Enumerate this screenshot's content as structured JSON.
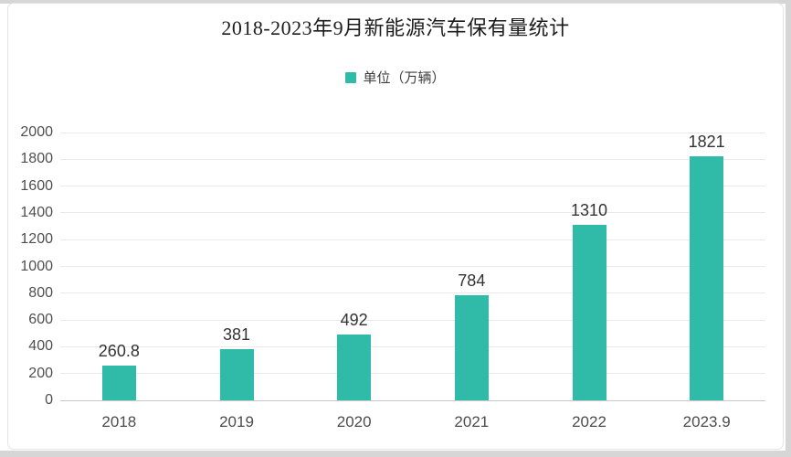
{
  "chart_data": {
    "type": "bar",
    "title": "2018-2023年9月新能源汽车保有量统计",
    "legend": "单位（万辆）",
    "legend_position": "top-center",
    "categories": [
      "2018",
      "2019",
      "2020",
      "2021",
      "2022",
      "2023.9"
    ],
    "values": [
      260.8,
      381,
      492,
      784,
      1310,
      1821
    ],
    "ylim": [
      0,
      2000
    ],
    "ytick_step": 200,
    "grid": true,
    "xlabel": "",
    "ylabel": "",
    "bar_color": "#30bba8",
    "value_label_color": "#333333",
    "axis_label_color": "#4c4c4c"
  }
}
